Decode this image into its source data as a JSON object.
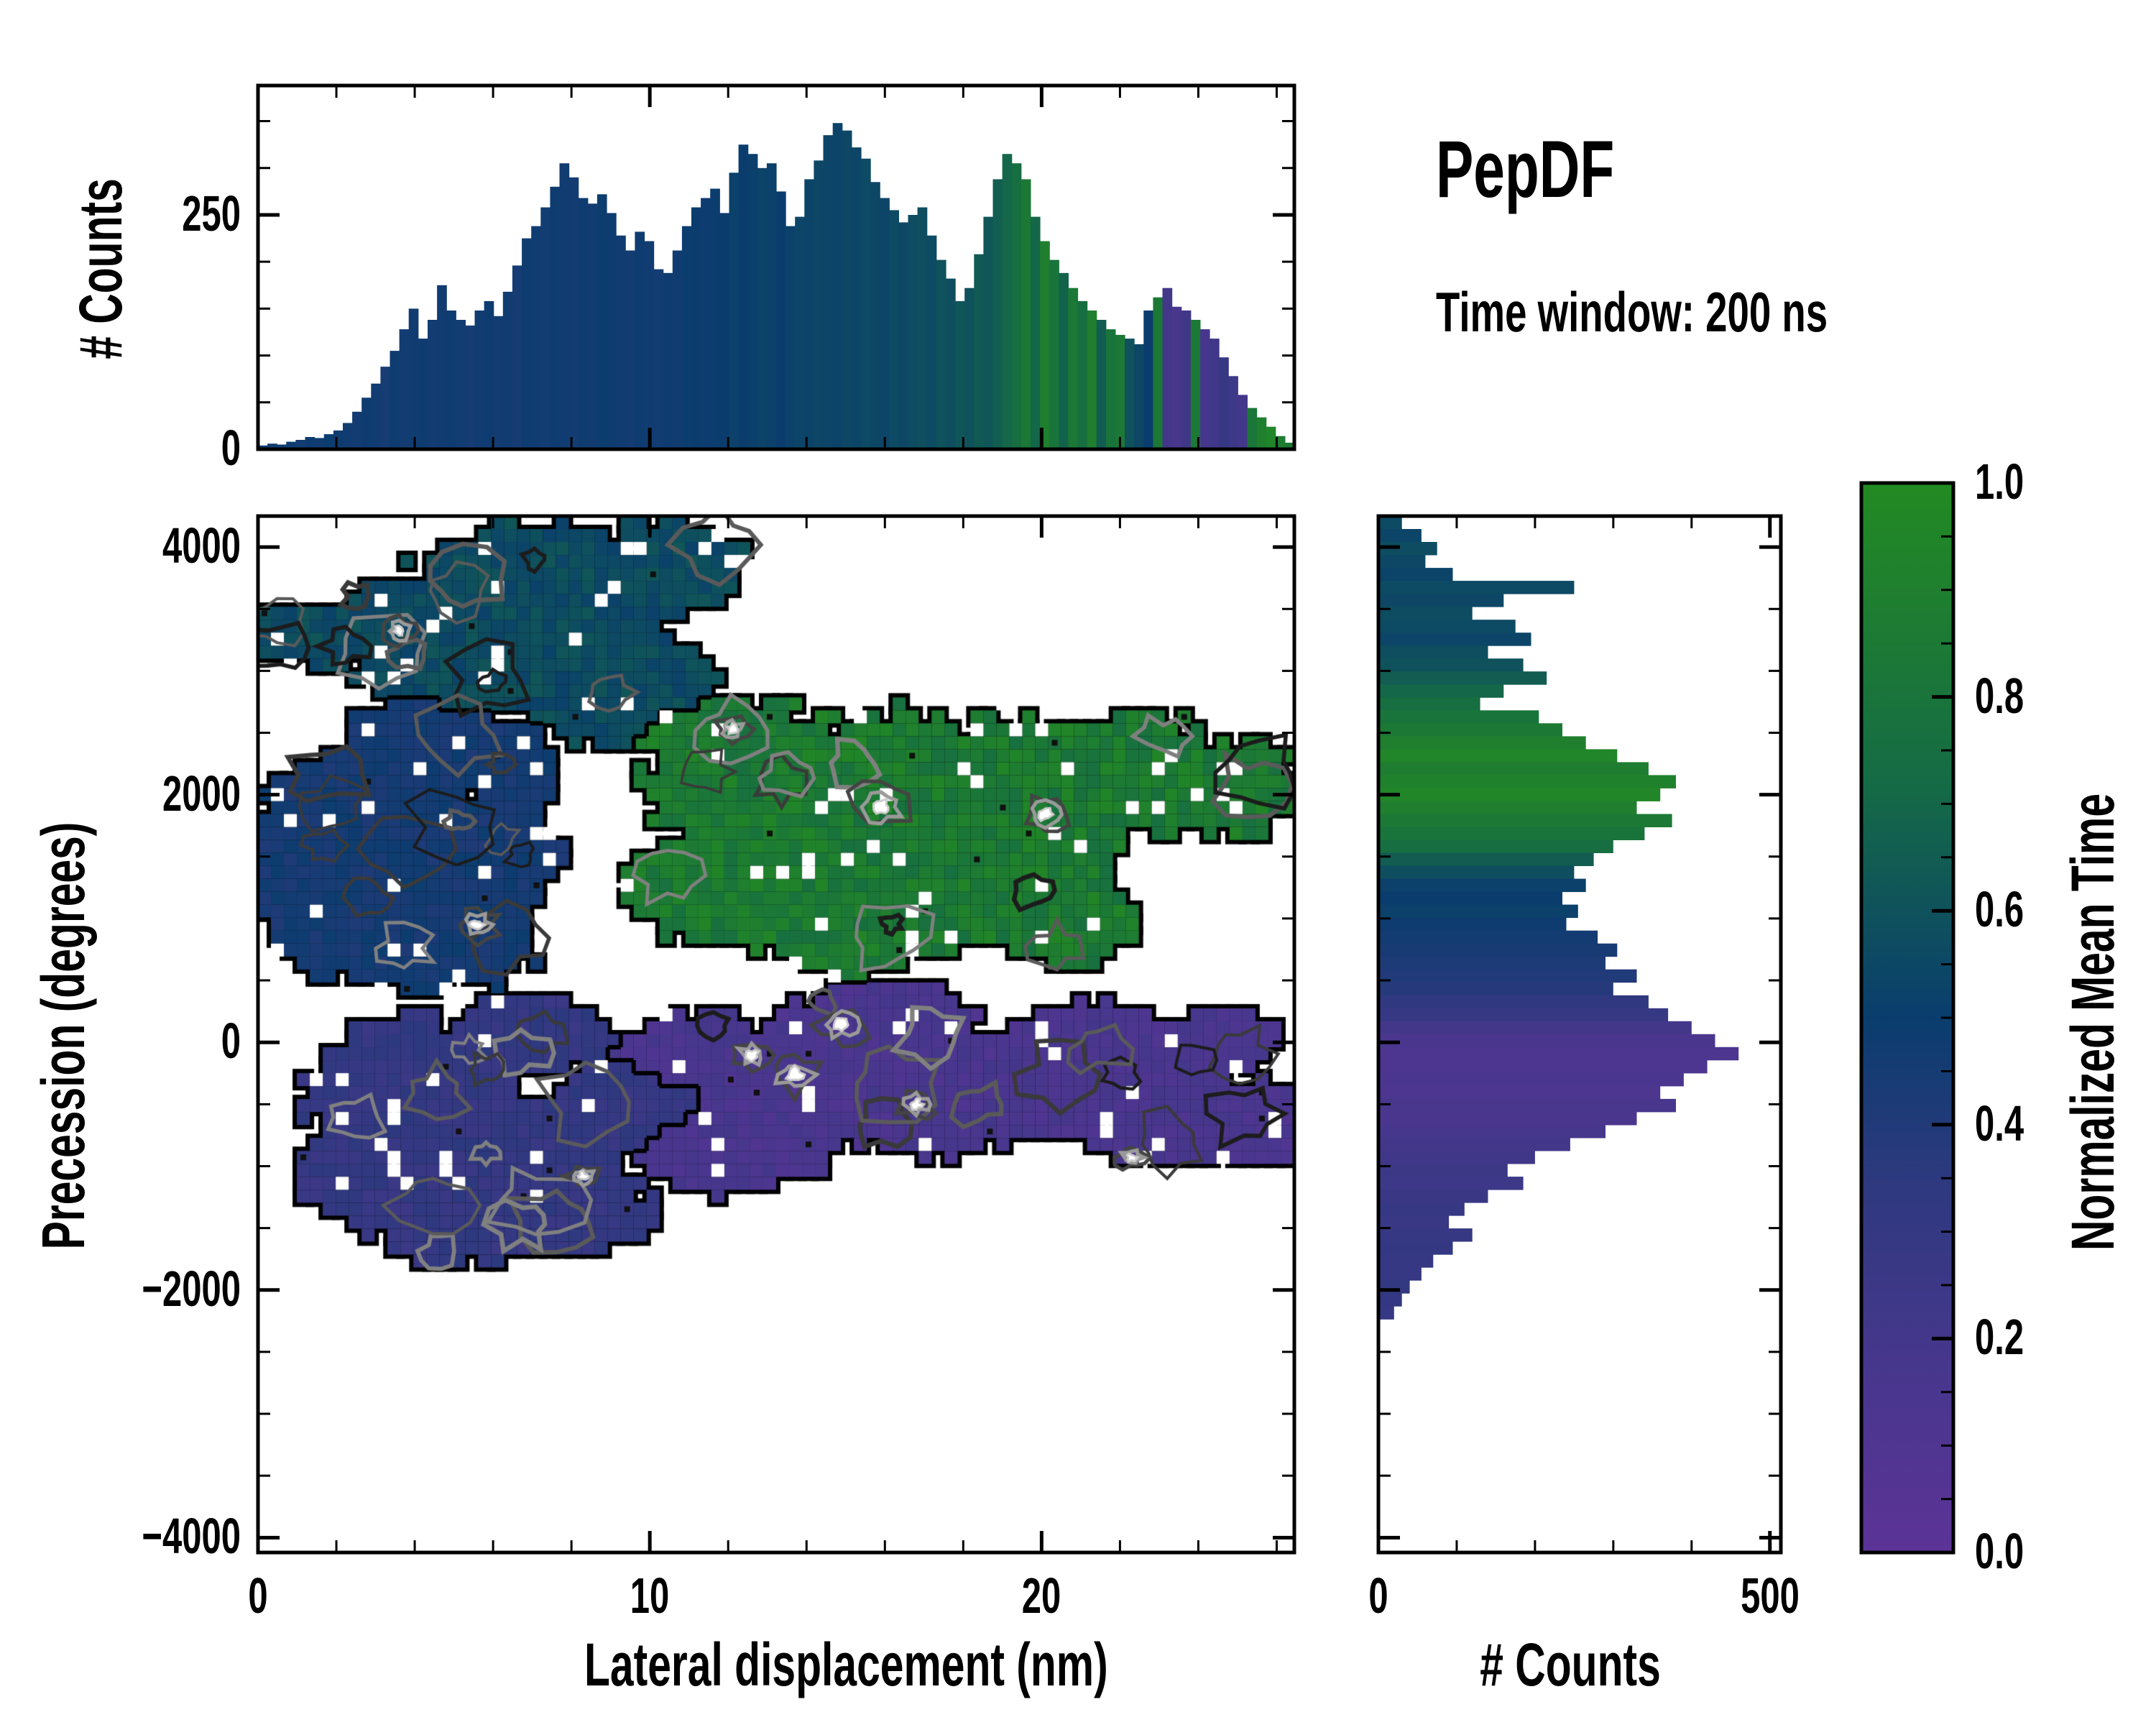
{
  "title": "PepDF",
  "subtitle": "Time window: 200 ns",
  "colors": {
    "background": "#ffffff",
    "frame": "#000000",
    "colormap_stops": [
      [
        0.0,
        "#5c3397"
      ],
      [
        0.18,
        "#46378c"
      ],
      [
        0.35,
        "#2d397e"
      ],
      [
        0.5,
        "#0a3d6e"
      ],
      [
        0.72,
        "#156b45"
      ],
      [
        0.9,
        "#1f7f2f"
      ],
      [
        1.0,
        "#228a22"
      ]
    ]
  },
  "axes": {
    "main": {
      "xlabel": "Lateral displacement (nm)",
      "ylabel": "Precession (degrees)",
      "xlim": [
        0,
        26.45
      ],
      "ylim": [
        -4120,
        4250
      ],
      "xticks": [
        0,
        10,
        20
      ],
      "xticklabels": [
        "0",
        "10",
        "20"
      ],
      "xminor_step": 2,
      "yticks": [
        4000,
        2000,
        0,
        -2000,
        -4000
      ],
      "yticklabels": [
        "4000",
        "2000",
        "0",
        "−2000",
        "−4000"
      ],
      "yminor_step": 500
    },
    "top": {
      "ylabel": "# Counts",
      "ylim": [
        0,
        388
      ],
      "yticks": [
        0,
        250
      ],
      "yticklabels": [
        "0",
        "250"
      ],
      "yminor_step": 50
    },
    "right": {
      "xlabel": "# Counts",
      "xlim": [
        0,
        514
      ],
      "xticks": [
        0,
        500
      ],
      "xticklabels": [
        "0",
        "500"
      ],
      "xminor_step": 100
    },
    "colorbar": {
      "label": "Normalized Mean Time",
      "range": [
        0,
        1
      ],
      "ticks": [
        0,
        0.2,
        0.4,
        0.6,
        0.8,
        1.0
      ],
      "ticklabels": [
        "0.0",
        "0.2",
        "0.4",
        "0.6",
        "0.8",
        "1.0"
      ],
      "minor_step": 0.05
    }
  },
  "chart_data": [
    {
      "type": "bar",
      "name": "top_marginal_histogram",
      "orientation": "vertical",
      "xlabel": "Lateral displacement (nm)",
      "ylabel": "# Counts",
      "x_start": 0,
      "bin_width": 0.2404,
      "xlim": [
        0,
        26.45
      ],
      "ylim": [
        0,
        388
      ],
      "values": [
        4,
        6,
        5,
        8,
        10,
        13,
        12,
        16,
        20,
        28,
        40,
        55,
        70,
        88,
        105,
        128,
        150,
        118,
        138,
        175,
        148,
        138,
        132,
        148,
        158,
        142,
        168,
        196,
        225,
        238,
        258,
        280,
        305,
        290,
        268,
        262,
        272,
        252,
        228,
        212,
        232,
        222,
        192,
        188,
        212,
        238,
        258,
        268,
        278,
        252,
        295,
        325,
        315,
        300,
        305,
        275,
        238,
        248,
        288,
        308,
        335,
        348,
        340,
        322,
        310,
        285,
        268,
        255,
        242,
        250,
        258,
        228,
        202,
        182,
        158,
        172,
        208,
        248,
        288,
        315,
        305,
        288,
        248,
        222,
        202,
        188,
        172,
        158,
        148,
        138,
        128,
        122,
        118,
        112,
        148,
        162,
        172,
        152,
        148,
        138,
        128,
        118,
        98,
        78,
        58,
        44,
        34,
        24,
        14,
        7
      ],
      "color_values": [
        0.48,
        0.47,
        0.49,
        0.48,
        0.46,
        0.48,
        0.47,
        0.49,
        0.48,
        0.47,
        0.46,
        0.48,
        0.47,
        0.45,
        0.48,
        0.46,
        0.47,
        0.48,
        0.46,
        0.47,
        0.48,
        0.46,
        0.45,
        0.47,
        0.48,
        0.46,
        0.47,
        0.45,
        0.48,
        0.47,
        0.46,
        0.48,
        0.47,
        0.46,
        0.48,
        0.47,
        0.49,
        0.48,
        0.47,
        0.46,
        0.48,
        0.47,
        0.46,
        0.48,
        0.47,
        0.49,
        0.5,
        0.48,
        0.49,
        0.5,
        0.52,
        0.5,
        0.51,
        0.53,
        0.52,
        0.5,
        0.52,
        0.54,
        0.53,
        0.55,
        0.54,
        0.53,
        0.55,
        0.54,
        0.56,
        0.55,
        0.54,
        0.56,
        0.55,
        0.57,
        0.58,
        0.56,
        0.6,
        0.58,
        0.62,
        0.6,
        0.64,
        0.62,
        0.66,
        0.7,
        0.75,
        0.85,
        0.7,
        0.9,
        0.8,
        0.68,
        0.85,
        0.75,
        0.9,
        0.65,
        0.8,
        0.85,
        0.6,
        0.55,
        0.5,
        0.85,
        0.2,
        0.16,
        0.22,
        0.85,
        0.18,
        0.22,
        0.28,
        0.24,
        0.2,
        0.82,
        0.9,
        0.95,
        0.88,
        0.85
      ]
    },
    {
      "type": "heatmap",
      "name": "main_density_map",
      "xlabel": "Lateral displacement (nm)",
      "ylabel": "Precession (degrees)",
      "xlim": [
        0,
        26.45
      ],
      "ylim": [
        -4120,
        4250
      ],
      "color_meaning": "Normalized Mean Time",
      "bin_grid": [
        80,
        80
      ],
      "clusters": [
        {
          "name": "upper-teal-cluster",
          "value": 0.57,
          "jitter": 0.05,
          "hole_fraction": 0.055,
          "nodes": [
            [
              7.2,
              3600,
              3.4,
              620
            ],
            [
              5.2,
              3020,
              2.9,
              420
            ],
            [
              9.2,
              2880,
              2.6,
              460
            ],
            [
              2.1,
              3270,
              2.2,
              250
            ],
            [
              0.6,
              3290,
              1.6,
              230
            ],
            [
              10.4,
              3850,
              2.0,
              380
            ],
            [
              4.0,
              3350,
              2.5,
              400
            ]
          ]
        },
        {
          "name": "left-navy-cluster",
          "value": 0.45,
          "jitter": 0.04,
          "hole_fraction": 0.055,
          "nodes": [
            [
              3.2,
              1950,
              2.5,
              550
            ],
            [
              2.3,
              1150,
              2.3,
              650
            ],
            [
              4.6,
              850,
              2.7,
              480
            ],
            [
              5.9,
              1500,
              1.9,
              480
            ],
            [
              1.1,
              1500,
              1.3,
              750
            ],
            [
              6.3,
              2250,
              1.5,
              330
            ],
            [
              4.4,
              2550,
              1.9,
              260
            ]
          ]
        },
        {
          "name": "center-green-cluster",
          "value": 0.86,
          "jitter": 0.1,
          "hole_fraction": 0.055,
          "nodes": [
            [
              13.0,
              2050,
              3.0,
              650
            ],
            [
              16.0,
              1800,
              3.6,
              850
            ],
            [
              19.5,
              1950,
              3.0,
              750
            ],
            [
              22.5,
              2150,
              2.6,
              480
            ],
            [
              24.8,
              2050,
              1.8,
              380
            ],
            [
              12.0,
              1250,
              2.6,
              480
            ],
            [
              15.0,
              950,
              2.6,
              420
            ],
            [
              18.0,
              1300,
              2.6,
              560
            ],
            [
              11.6,
              2500,
              2.1,
              300
            ],
            [
              20.5,
              1000,
              2.0,
              350
            ]
          ]
        },
        {
          "name": "lower-indigo-cluster",
          "value": 0.3,
          "jitter": 0.05,
          "hole_fraction": 0.055,
          "nodes": [
            [
              4.0,
              -450,
              2.9,
              680
            ],
            [
              6.5,
              -950,
              2.6,
              560
            ],
            [
              8.0,
              -1350,
              2.1,
              380
            ],
            [
              5.0,
              -1400,
              2.3,
              420
            ],
            [
              7.0,
              50,
              2.1,
              320
            ],
            [
              3.0,
              -1100,
              2.1,
              420
            ],
            [
              9.5,
              -500,
              2.0,
              400
            ]
          ]
        },
        {
          "name": "lower-purple-cluster",
          "value": 0.15,
          "jitter": 0.05,
          "hole_fraction": 0.055,
          "nodes": [
            [
              14.0,
              -350,
              3.0,
              560
            ],
            [
              17.0,
              -420,
              3.0,
              520
            ],
            [
              20.0,
              -350,
              2.9,
              480
            ],
            [
              23.0,
              -550,
              2.6,
              430
            ],
            [
              25.2,
              -650,
              1.8,
              330
            ],
            [
              16.0,
              150,
              2.6,
              330
            ],
            [
              12.0,
              -850,
              2.6,
              380
            ],
            [
              21.5,
              50,
              2.1,
              280
            ],
            [
              24.5,
              0,
              1.6,
              240
            ],
            [
              11.0,
              -100,
              2.0,
              350
            ]
          ]
        }
      ],
      "highlights": [
        [
          15.9,
          1900,
          40
        ],
        [
          20.1,
          1840,
          30
        ],
        [
          14.9,
          140,
          32
        ],
        [
          13.7,
          -260,
          36
        ],
        [
          5.6,
          950,
          26
        ],
        [
          3.6,
          3320,
          22
        ],
        [
          8.3,
          -1080,
          20
        ],
        [
          22.3,
          -930,
          20
        ],
        [
          12.1,
          2530,
          22
        ],
        [
          16.8,
          -500,
          24
        ],
        [
          12.6,
          -100,
          26
        ]
      ]
    },
    {
      "type": "bar",
      "name": "right_marginal_histogram",
      "orientation": "horizontal",
      "xlabel": "# Counts",
      "ylabel": "Precession (degrees)",
      "y_start": 4250,
      "bin_height": -104.6,
      "xlim": [
        0,
        514
      ],
      "values": [
        30,
        55,
        75,
        60,
        95,
        250,
        160,
        120,
        175,
        195,
        140,
        185,
        215,
        160,
        130,
        205,
        235,
        265,
        305,
        345,
        380,
        360,
        330,
        375,
        340,
        300,
        275,
        250,
        265,
        235,
        255,
        240,
        280,
        305,
        290,
        330,
        300,
        345,
        370,
        400,
        430,
        460,
        420,
        390,
        360,
        380,
        330,
        290,
        245,
        200,
        165,
        185,
        140,
        110,
        90,
        120,
        95,
        70,
        55,
        40,
        30,
        20
      ],
      "color_values": [
        0.56,
        0.54,
        0.57,
        0.55,
        0.53,
        0.56,
        0.55,
        0.57,
        0.56,
        0.54,
        0.58,
        0.6,
        0.65,
        0.7,
        0.75,
        0.8,
        0.85,
        0.9,
        0.95,
        0.88,
        0.92,
        0.96,
        0.9,
        0.85,
        0.8,
        0.75,
        0.65,
        0.58,
        0.52,
        0.5,
        0.52,
        0.48,
        0.46,
        0.44,
        0.42,
        0.4,
        0.38,
        0.33,
        0.28,
        0.2,
        0.14,
        0.12,
        0.13,
        0.15,
        0.13,
        0.16,
        0.14,
        0.18,
        0.2,
        0.22,
        0.25,
        0.24,
        0.26,
        0.28,
        0.27,
        0.29,
        0.3,
        0.28,
        0.29,
        0.31,
        0.3,
        0.29
      ]
    },
    {
      "type": "colorbar",
      "name": "normalized-mean-time-colorbar",
      "label": "Normalized Mean Time",
      "range": [
        0,
        1
      ],
      "ticklabels": [
        "0.0",
        "0.2",
        "0.4",
        "0.6",
        "0.8",
        "1.0"
      ]
    }
  ]
}
